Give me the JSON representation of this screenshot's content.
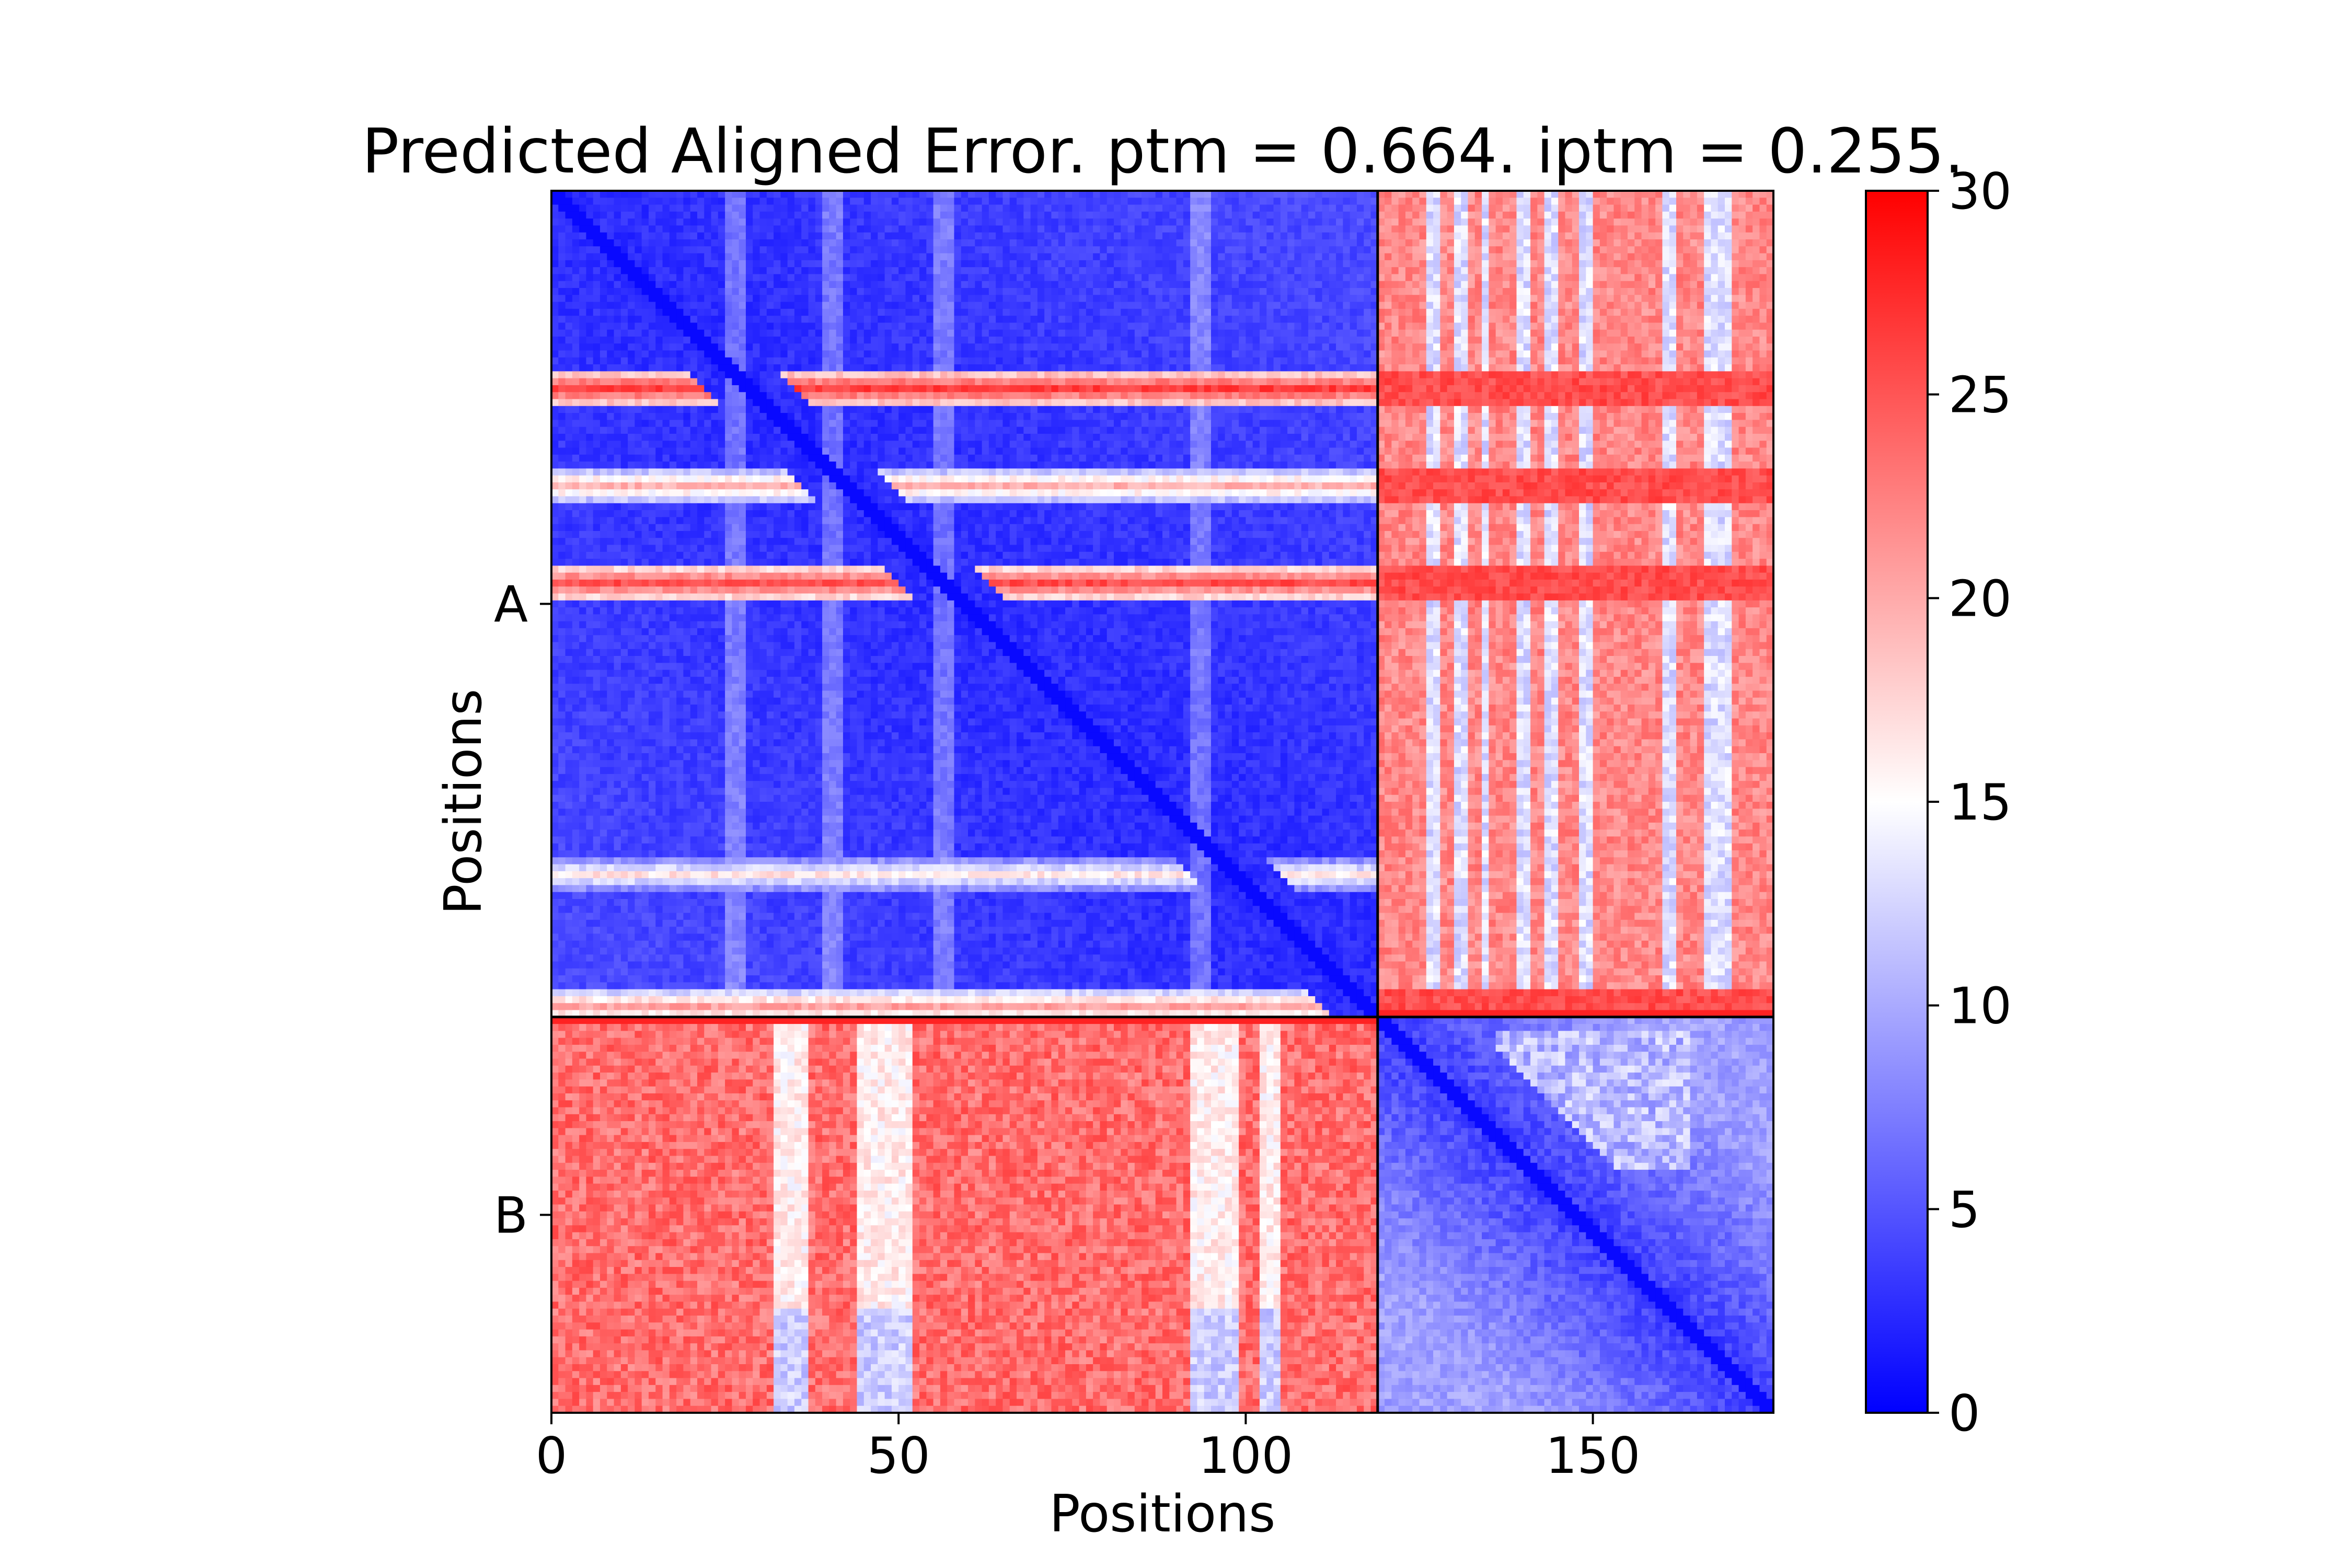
{
  "chart_data": {
    "type": "heatmap",
    "title": "Predicted Aligned Error. ptm = 0.664. iptm = 0.255.",
    "xlabel": "Positions",
    "ylabel": "Positions",
    "n_positions": 176,
    "chain_boundary": 119,
    "xlim": [
      0,
      176
    ],
    "ylim": [
      176,
      0
    ],
    "x_ticks": [
      0,
      50,
      100,
      150
    ],
    "y_ticks": [
      {
        "label": "A",
        "position": 59.5
      },
      {
        "label": "B",
        "position": 147.5
      }
    ],
    "chains": [
      {
        "name": "A",
        "start": 0,
        "end": 119
      },
      {
        "name": "B",
        "start": 119,
        "end": 176
      }
    ],
    "colorbar": {
      "min": 0,
      "max": 30,
      "ticks": [
        0,
        5,
        10,
        15,
        20,
        25,
        30
      ],
      "colormap": [
        "#0000ff",
        "#ffffff",
        "#ff0000"
      ]
    },
    "features": {
      "A_A_high_error_rows": [
        {
          "row": 28,
          "error": 25
        },
        {
          "row": 42,
          "error": 18
        },
        {
          "row": 56,
          "error": 24
        },
        {
          "row": 98,
          "error": 15
        },
        {
          "row": 117,
          "error": 19
        }
      ],
      "A_A_faint_columns": [
        26,
        40,
        56,
        93
      ],
      "A_B_blue_columns": [
        [
          126,
          127
        ],
        [
          130,
          131
        ],
        [
          134,
          134
        ],
        [
          139,
          140
        ],
        [
          143,
          144
        ],
        [
          148,
          149
        ],
        [
          160,
          161
        ],
        [
          166,
          169
        ]
      ],
      "B_A_pale_columns": [
        [
          32,
          36
        ],
        [
          44,
          51
        ],
        [
          92,
          98
        ],
        [
          102,
          104
        ]
      ],
      "B_B_high_error_block": {
        "rows": [
          121,
          140
        ],
        "cols": [
          136,
          163
        ],
        "error": 13
      }
    }
  }
}
